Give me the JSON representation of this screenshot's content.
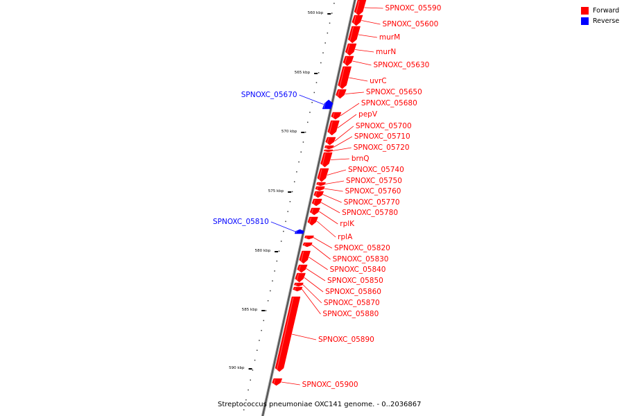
{
  "legend": {
    "forward_label": "Forward",
    "reverse_label": "Reverse",
    "forward_color": "#ff0000",
    "reverse_color": "#0000ff"
  },
  "caption": "Streptococcus pneumoniae OXC141 genome. - 0..2036867",
  "ticks": [
    {
      "kbp": 560,
      "label": "560 kbp"
    },
    {
      "kbp": 565,
      "label": "565 kbp"
    },
    {
      "kbp": 570,
      "label": "570 kbp"
    },
    {
      "kbp": 575,
      "label": "575 kbp"
    },
    {
      "kbp": 580,
      "label": "580 kbp"
    },
    {
      "kbp": 585,
      "label": "585 kbp"
    },
    {
      "kbp": 590,
      "label": "590 kbp"
    }
  ],
  "genes": [
    {
      "name": "SPNOXC_05590",
      "strand": "forward"
    },
    {
      "name": "SPNOXC_05600",
      "strand": "forward"
    },
    {
      "name": "murM",
      "strand": "forward"
    },
    {
      "name": "murN",
      "strand": "forward"
    },
    {
      "name": "SPNOXC_05630",
      "strand": "forward"
    },
    {
      "name": "uvrC",
      "strand": "forward"
    },
    {
      "name": "SPNOXC_05650",
      "strand": "forward"
    },
    {
      "name": "SPNOXC_05670",
      "strand": "reverse"
    },
    {
      "name": "SPNOXC_05680",
      "strand": "forward"
    },
    {
      "name": "pepV",
      "strand": "forward"
    },
    {
      "name": "SPNOXC_05700",
      "strand": "forward"
    },
    {
      "name": "SPNOXC_05710",
      "strand": "forward"
    },
    {
      "name": "SPNOXC_05720",
      "strand": "forward"
    },
    {
      "name": "brnQ",
      "strand": "forward"
    },
    {
      "name": "SPNOXC_05740",
      "strand": "forward"
    },
    {
      "name": "SPNOXC_05750",
      "strand": "forward"
    },
    {
      "name": "SPNOXC_05760",
      "strand": "forward"
    },
    {
      "name": "SPNOXC_05770",
      "strand": "forward"
    },
    {
      "name": "SPNOXC_05780",
      "strand": "forward"
    },
    {
      "name": "SPNOXC_05810",
      "strand": "reverse"
    },
    {
      "name": "rplK",
      "strand": "forward"
    },
    {
      "name": "rplA",
      "strand": "forward"
    },
    {
      "name": "SPNOXC_05820",
      "strand": "forward"
    },
    {
      "name": "SPNOXC_05830",
      "strand": "forward"
    },
    {
      "name": "SPNOXC_05840",
      "strand": "forward"
    },
    {
      "name": "SPNOXC_05850",
      "strand": "forward"
    },
    {
      "name": "SPNOXC_05860",
      "strand": "forward"
    },
    {
      "name": "SPNOXC_05870",
      "strand": "forward"
    },
    {
      "name": "SPNOXC_05880",
      "strand": "forward"
    },
    {
      "name": "SPNOXC_05890",
      "strand": "forward"
    },
    {
      "name": "SPNOXC_05900",
      "strand": "forward"
    }
  ]
}
